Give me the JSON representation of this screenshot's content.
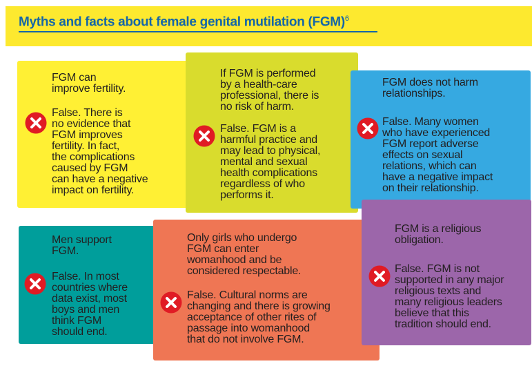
{
  "header": {
    "title": "Myths and facts about female genital mutilation (FGM)",
    "footnote": "6"
  },
  "colors": {
    "title_blue": "#1466a8",
    "header_yellow": "#fde92f",
    "icon_red": "#e01b24"
  },
  "cards": [
    {
      "myth": [
        "FGM can",
        "improve fertility."
      ],
      "fact": [
        "False. There is",
        "no evidence that",
        "FGM improves",
        "fertility. In fact,",
        "the complications",
        "caused by FGM",
        "can have a negative",
        "impact on fertility."
      ],
      "icon": "red-x-icon",
      "color": "#fff034"
    },
    {
      "myth": [
        "If FGM is performed",
        "by a health-care",
        "professional, there is",
        "no risk of harm."
      ],
      "fact": [
        "False. FGM is a",
        "harmful practice and",
        "may lead to physical,",
        "mental and sexual",
        "health complications",
        "regardless of who",
        "performs it."
      ],
      "icon": "red-x-icon",
      "color": "#d9dc2d"
    },
    {
      "myth": [
        "FGM does not harm",
        "relationships."
      ],
      "fact": [
        "False. Many women",
        "who have experienced",
        "FGM report adverse",
        "effects on sexual",
        "relations, which can",
        "have a negative impact",
        "on their relationship."
      ],
      "icon": "red-x-icon",
      "color": "#36a9e1"
    },
    {
      "myth": [
        "Men support",
        "FGM."
      ],
      "fact": [
        "False. In most",
        "countries where",
        "data exist, most",
        "boys and men",
        "think FGM",
        "should end."
      ],
      "icon": "red-x-icon",
      "color": "#009e9b"
    },
    {
      "myth": [
        "Only girls who undergo",
        "FGM can enter",
        "womanhood and be",
        "considered respectable."
      ],
      "fact": [
        "False. Cultural norms are",
        "changing and there is growing",
        "acceptance of other rites of",
        "passage into womanhood",
        "that do not involve FGM."
      ],
      "icon": "red-x-icon",
      "color": "#ef7654"
    },
    {
      "myth": [
        "FGM is a religious",
        "obligation."
      ],
      "fact": [
        "False. FGM is not",
        "supported in any major",
        "religious texts and",
        "many religious leaders",
        "believe that this",
        "tradition should end."
      ],
      "icon": "red-x-icon",
      "color": "#9c66aa"
    }
  ]
}
